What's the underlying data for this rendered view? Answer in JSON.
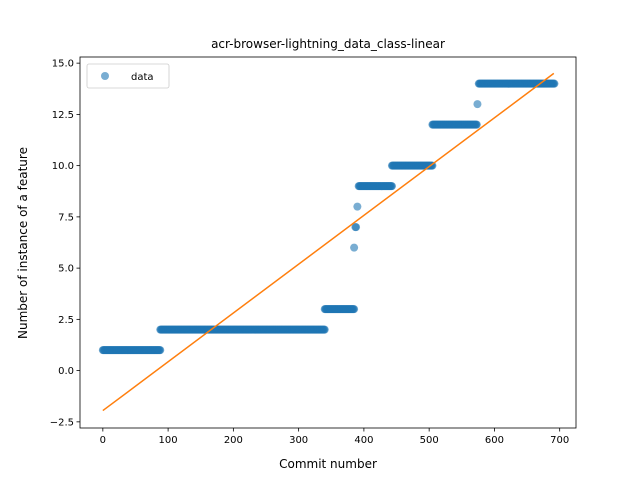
{
  "chart_data": {
    "type": "scatter",
    "title": "acr-browser-lightning_data_class-linear",
    "xlabel": "Commit number",
    "ylabel": "Number of instance of a feature",
    "xlim": [
      -35,
      725
    ],
    "ylim": [
      -2.8,
      15.3
    ],
    "xticks": [
      0,
      100,
      200,
      300,
      400,
      500,
      600,
      700
    ],
    "yticks": [
      -2.5,
      0.0,
      2.5,
      5.0,
      7.5,
      10.0,
      12.5,
      15.0
    ],
    "ytick_labels": [
      "−2.5",
      "0.0",
      "2.5",
      "5.0",
      "7.5",
      "10.0",
      "12.5",
      "15.0"
    ],
    "legend": {
      "placement": "top-left",
      "entries": [
        "data"
      ]
    },
    "grid": false,
    "series": [
      {
        "name": "data",
        "kind": "points",
        "color": "#1f77b4",
        "segments": [
          {
            "x_start": 0,
            "x_end": 88,
            "y": 1
          },
          {
            "x_start": 88,
            "x_end": 340,
            "y": 2
          },
          {
            "x_start": 340,
            "x_end": 385,
            "y": 3
          },
          {
            "x_start": 392,
            "x_end": 443,
            "y": 9
          },
          {
            "x_start": 443,
            "x_end": 505,
            "y": 10
          },
          {
            "x_start": 505,
            "x_end": 573,
            "y": 12
          },
          {
            "x_start": 576,
            "x_end": 692,
            "y": 14
          }
        ],
        "points": [
          {
            "x": 385,
            "y": 6
          },
          {
            "x": 387,
            "y": 7
          },
          {
            "x": 388,
            "y": 7
          },
          {
            "x": 390,
            "y": 8
          },
          {
            "x": 574,
            "y": 13
          }
        ]
      },
      {
        "kind": "line",
        "color": "#ff7f0e",
        "x": [
          0,
          691
        ],
        "y": [
          -1.95,
          14.5
        ]
      }
    ]
  }
}
